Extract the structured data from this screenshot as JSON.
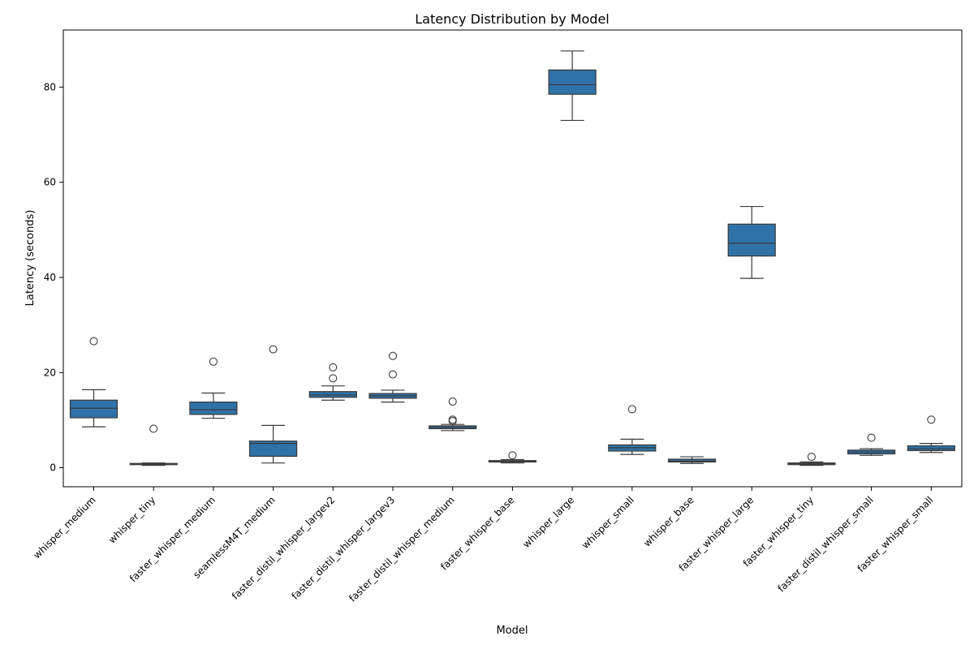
{
  "chart_data": {
    "type": "box",
    "title": "Latency Distribution by Model",
    "xlabel": "Model",
    "ylabel": "Latency (seconds)",
    "ylim": [
      -4,
      92
    ],
    "yticks": [
      0,
      20,
      40,
      60,
      80
    ],
    "grid": false,
    "box_color": "#2f72a8",
    "categories": [
      "whisper_medium",
      "whisper_tiny",
      "faster_whisper_medium",
      "seamlessM4T_medium",
      "faster_distil_whisper_largev2",
      "faster_distil_whisper_largev3",
      "faster_distil_whisper_medium",
      "faster_whisper_base",
      "whisper_large",
      "whisper_small",
      "whisper_base",
      "faster_whisper_large",
      "faster_whisper_tiny",
      "faster_distil_whisper_small",
      "faster_whisper_small"
    ],
    "boxes": [
      {
        "whislo": 8.6,
        "q1": 10.5,
        "med": 12.5,
        "q3": 14.2,
        "whishi": 16.4,
        "fliers": [
          26.6
        ]
      },
      {
        "whislo": 0.5,
        "q1": 0.65,
        "med": 0.8,
        "q3": 0.9,
        "whishi": 1.0,
        "fliers": [
          8.2
        ]
      },
      {
        "whislo": 10.4,
        "q1": 11.2,
        "med": 12.2,
        "q3": 13.8,
        "whishi": 15.7,
        "fliers": [
          22.3
        ]
      },
      {
        "whislo": 1.0,
        "q1": 2.4,
        "med": 5.1,
        "q3": 5.6,
        "whishi": 8.9,
        "fliers": [
          24.9
        ]
      },
      {
        "whislo": 14.2,
        "q1": 14.8,
        "med": 15.3,
        "q3": 16.0,
        "whishi": 17.2,
        "fliers": [
          18.8,
          21.1
        ]
      },
      {
        "whislo": 13.8,
        "q1": 14.6,
        "med": 15.1,
        "q3": 15.6,
        "whishi": 16.3,
        "fliers": [
          19.6,
          23.5
        ]
      },
      {
        "whislo": 7.8,
        "q1": 8.2,
        "med": 8.5,
        "q3": 8.8,
        "whishi": 9.1,
        "fliers": [
          9.8,
          10.1,
          13.9
        ]
      },
      {
        "whislo": 1.0,
        "q1": 1.2,
        "med": 1.35,
        "q3": 1.5,
        "whishi": 1.7,
        "fliers": [
          2.6
        ]
      },
      {
        "whislo": 73.0,
        "q1": 78.5,
        "med": 80.5,
        "q3": 83.6,
        "whishi": 87.6,
        "fliers": []
      },
      {
        "whislo": 2.8,
        "q1": 3.5,
        "med": 4.2,
        "q3": 4.8,
        "whishi": 6.0,
        "fliers": [
          12.3
        ]
      },
      {
        "whislo": 0.9,
        "q1": 1.2,
        "med": 1.4,
        "q3": 1.8,
        "whishi": 2.3,
        "fliers": []
      },
      {
        "whislo": 39.8,
        "q1": 44.5,
        "med": 47.2,
        "q3": 51.2,
        "whishi": 54.9,
        "fliers": []
      },
      {
        "whislo": 0.5,
        "q1": 0.65,
        "med": 0.8,
        "q3": 1.0,
        "whishi": 1.2,
        "fliers": [
          2.3
        ]
      },
      {
        "whislo": 2.6,
        "q1": 2.9,
        "med": 3.3,
        "q3": 3.7,
        "whishi": 4.0,
        "fliers": [
          6.3
        ]
      },
      {
        "whislo": 3.2,
        "q1": 3.6,
        "med": 4.0,
        "q3": 4.6,
        "whishi": 5.1,
        "fliers": [
          10.1
        ]
      }
    ]
  }
}
